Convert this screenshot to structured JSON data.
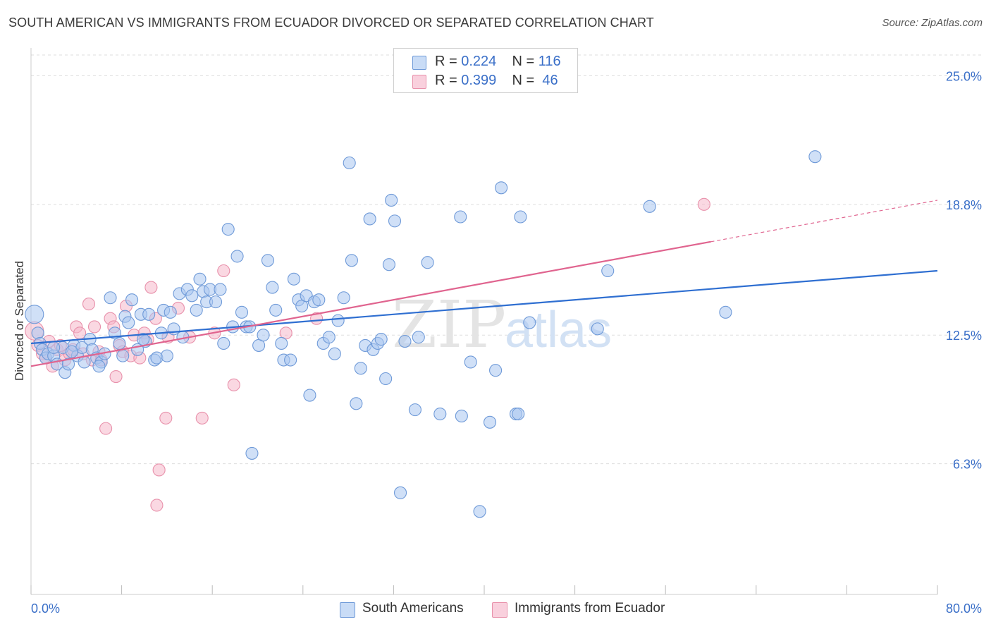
{
  "title": "SOUTH AMERICAN VS IMMIGRANTS FROM ECUADOR DIVORCED OR SEPARATED CORRELATION CHART",
  "source": "Source: ZipAtlas.com",
  "watermark": {
    "zip": "ZIP",
    "atlas": "atlas"
  },
  "legend": {
    "rows": [
      {
        "r_label": "R =",
        "r_value": "0.224",
        "n_label": "N =",
        "n_value": "116",
        "color": "#a9c6f0"
      },
      {
        "r_label": "R =",
        "r_value": "0.399",
        "n_label": "N =",
        "n_value": " 46",
        "color": "#f6b8cb"
      }
    ]
  },
  "colors": {
    "blue_fill": "#a9c6f0",
    "blue_stroke": "#6f9ad8",
    "blue_line": "#2f6fd1",
    "pink_fill": "#f6b8cb",
    "pink_stroke": "#e891ab",
    "pink_line": "#e0648f",
    "tick_text": "#3a6fc8"
  },
  "chart_data": {
    "type": "scatter",
    "title": "SOUTH AMERICAN VS IMMIGRANTS FROM ECUADOR DIVORCED OR SEPARATED CORRELATION CHART",
    "xlabel": "",
    "ylabel": "Divorced or Separated",
    "xlim": [
      0,
      80
    ],
    "ylim": [
      0,
      26
    ],
    "x_tick_labels": [
      "0.0%",
      "80.0%"
    ],
    "y_ticks": [
      6.3,
      12.5,
      18.8,
      25.0
    ],
    "y_tick_labels": [
      "6.3%",
      "12.5%",
      "18.8%",
      "25.0%"
    ],
    "grid": "horizontal dashed",
    "legend_position": "top-center",
    "series": [
      {
        "name": "South Americans",
        "R": 0.224,
        "N": 116,
        "trend": {
          "x": [
            0,
            80
          ],
          "y": [
            12.1,
            15.6
          ],
          "dashed_from": null
        },
        "points": [
          [
            0.3,
            13.5
          ],
          [
            0.6,
            12.6
          ],
          [
            0.8,
            12.1
          ],
          [
            1.0,
            11.8
          ],
          [
            1.3,
            11.4
          ],
          [
            1.5,
            11.6
          ],
          [
            2.0,
            11.5
          ],
          [
            2.3,
            11.1
          ],
          [
            2.8,
            11.9
          ],
          [
            3.0,
            10.7
          ],
          [
            3.3,
            11.1
          ],
          [
            3.8,
            12.0
          ],
          [
            4.1,
            11.5
          ],
          [
            4.5,
            11.9
          ],
          [
            4.7,
            11.2
          ],
          [
            5.2,
            12.3
          ],
          [
            5.4,
            11.8
          ],
          [
            5.8,
            11.4
          ],
          [
            6.2,
            11.2
          ],
          [
            6.5,
            11.6
          ],
          [
            7.0,
            14.3
          ],
          [
            7.4,
            12.6
          ],
          [
            7.8,
            12.1
          ],
          [
            8.1,
            11.5
          ],
          [
            8.3,
            13.4
          ],
          [
            8.6,
            13.1
          ],
          [
            8.9,
            14.2
          ],
          [
            9.4,
            11.8
          ],
          [
            9.7,
            13.5
          ],
          [
            10.1,
            12.2
          ],
          [
            10.4,
            13.5
          ],
          [
            10.9,
            11.3
          ],
          [
            11.1,
            11.4
          ],
          [
            11.5,
            12.6
          ],
          [
            11.7,
            13.7
          ],
          [
            12.0,
            11.5
          ],
          [
            12.3,
            13.6
          ],
          [
            12.6,
            12.8
          ],
          [
            13.1,
            14.5
          ],
          [
            13.4,
            12.4
          ],
          [
            13.8,
            14.7
          ],
          [
            14.2,
            14.4
          ],
          [
            14.6,
            13.7
          ],
          [
            14.9,
            15.2
          ],
          [
            15.2,
            14.6
          ],
          [
            15.5,
            14.1
          ],
          [
            15.8,
            14.7
          ],
          [
            16.3,
            14.1
          ],
          [
            16.7,
            14.7
          ],
          [
            17.0,
            12.1
          ],
          [
            17.4,
            17.6
          ],
          [
            17.8,
            12.9
          ],
          [
            18.2,
            16.3
          ],
          [
            18.6,
            13.6
          ],
          [
            19.0,
            12.9
          ],
          [
            19.3,
            12.9
          ],
          [
            19.5,
            6.8
          ],
          [
            20.1,
            12.0
          ],
          [
            20.5,
            12.5
          ],
          [
            20.9,
            16.1
          ],
          [
            21.3,
            14.8
          ],
          [
            21.6,
            13.7
          ],
          [
            22.1,
            12.1
          ],
          [
            22.3,
            11.3
          ],
          [
            22.9,
            11.3
          ],
          [
            23.2,
            15.2
          ],
          [
            23.6,
            14.2
          ],
          [
            23.9,
            13.9
          ],
          [
            24.3,
            14.4
          ],
          [
            24.6,
            9.6
          ],
          [
            25.0,
            14.1
          ],
          [
            25.4,
            14.2
          ],
          [
            25.8,
            12.1
          ],
          [
            26.3,
            12.4
          ],
          [
            26.8,
            11.6
          ],
          [
            27.1,
            13.2
          ],
          [
            27.6,
            14.3
          ],
          [
            28.1,
            20.8
          ],
          [
            28.3,
            16.1
          ],
          [
            28.7,
            9.2
          ],
          [
            29.1,
            10.9
          ],
          [
            29.5,
            12.0
          ],
          [
            29.9,
            18.1
          ],
          [
            30.2,
            11.8
          ],
          [
            30.6,
            12.1
          ],
          [
            30.9,
            12.3
          ],
          [
            31.3,
            10.4
          ],
          [
            31.6,
            15.9
          ],
          [
            31.8,
            19.0
          ],
          [
            32.1,
            18.0
          ],
          [
            32.6,
            4.9
          ],
          [
            33.0,
            12.2
          ],
          [
            33.9,
            8.9
          ],
          [
            34.2,
            12.4
          ],
          [
            35.0,
            16.0
          ],
          [
            36.1,
            8.7
          ],
          [
            37.9,
            18.2
          ],
          [
            38.0,
            8.6
          ],
          [
            38.8,
            11.2
          ],
          [
            39.6,
            4.0
          ],
          [
            40.5,
            8.3
          ],
          [
            41.0,
            10.8
          ],
          [
            41.5,
            19.6
          ],
          [
            42.8,
            8.7
          ],
          [
            43.0,
            8.7
          ],
          [
            43.2,
            18.2
          ],
          [
            44.0,
            13.1
          ],
          [
            50.0,
            12.8
          ],
          [
            50.9,
            15.6
          ],
          [
            54.6,
            18.7
          ],
          [
            61.3,
            13.6
          ],
          [
            69.2,
            21.1
          ],
          [
            2.0,
            11.9
          ],
          [
            3.6,
            11.7
          ],
          [
            6.0,
            11.0
          ],
          [
            9.9,
            12.3
          ]
        ]
      },
      {
        "name": "Immigrants from Ecuador",
        "R": 0.399,
        "N": 46,
        "trend": {
          "x": [
            0,
            80
          ],
          "y": [
            11.0,
            19.0
          ],
          "dashed_from": 60
        },
        "points": [
          [
            0.3,
            12.7
          ],
          [
            0.6,
            12.0
          ],
          [
            1.0,
            11.6
          ],
          [
            1.3,
            11.4
          ],
          [
            1.6,
            12.2
          ],
          [
            1.9,
            11.0
          ],
          [
            2.3,
            11.8
          ],
          [
            2.6,
            12.0
          ],
          [
            3.0,
            11.3
          ],
          [
            3.4,
            11.6
          ],
          [
            3.7,
            11.8
          ],
          [
            4.0,
            12.9
          ],
          [
            4.3,
            12.6
          ],
          [
            4.6,
            11.6
          ],
          [
            5.1,
            14.0
          ],
          [
            5.4,
            11.3
          ],
          [
            5.6,
            12.9
          ],
          [
            6.0,
            11.7
          ],
          [
            6.2,
            11.3
          ],
          [
            6.6,
            8.0
          ],
          [
            7.0,
            13.3
          ],
          [
            7.3,
            12.9
          ],
          [
            7.5,
            10.5
          ],
          [
            7.8,
            12.0
          ],
          [
            8.1,
            11.7
          ],
          [
            8.4,
            13.9
          ],
          [
            8.8,
            11.5
          ],
          [
            9.1,
            12.5
          ],
          [
            9.6,
            11.4
          ],
          [
            10.0,
            12.6
          ],
          [
            10.3,
            12.3
          ],
          [
            10.6,
            14.8
          ],
          [
            11.0,
            13.3
          ],
          [
            11.1,
            4.3
          ],
          [
            11.3,
            6.0
          ],
          [
            11.9,
            8.5
          ],
          [
            12.1,
            12.4
          ],
          [
            13.0,
            13.8
          ],
          [
            14.0,
            12.4
          ],
          [
            15.1,
            8.5
          ],
          [
            16.2,
            12.6
          ],
          [
            17.0,
            15.6
          ],
          [
            17.9,
            10.1
          ],
          [
            22.5,
            12.6
          ],
          [
            25.2,
            13.3
          ],
          [
            59.4,
            18.8
          ]
        ]
      }
    ]
  }
}
